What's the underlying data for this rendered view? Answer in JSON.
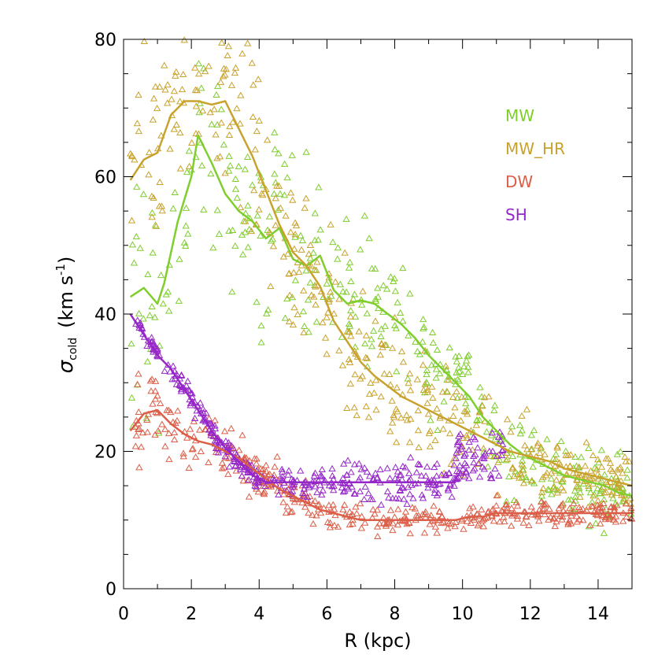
{
  "chart_data": {
    "type": "scatter",
    "xlabel": "R  (kpc)",
    "ylabel_symbol": "σ",
    "ylabel_subscript": "cold",
    "ylabel_unit": "(km s",
    "ylabel_unit_exp": "-1",
    "ylabel_unit_close": ")",
    "xlim": [
      0,
      15
    ],
    "ylim": [
      0,
      80
    ],
    "xticks": [
      0,
      2,
      4,
      6,
      8,
      10,
      12,
      14
    ],
    "yticks": [
      0,
      20,
      40,
      60,
      80
    ],
    "marker": "open-triangle",
    "legend_placement": "upper-right",
    "series": [
      {
        "name": "MW",
        "color": "#7fce2e",
        "mean_x": [
          0.2,
          0.6,
          1.0,
          1.2,
          1.6,
          2.0,
          2.2,
          2.6,
          3.0,
          3.4,
          3.8,
          4.2,
          4.6,
          5.0,
          5.4,
          5.8,
          6.2,
          6.6,
          7.0,
          7.4,
          7.8,
          8.2,
          8.6,
          9.0,
          9.4,
          9.8,
          10.2,
          10.6,
          11.0,
          11.4,
          11.8,
          12.2,
          12.6,
          13.0,
          13.4,
          13.8,
          14.2,
          14.6,
          15.0
        ],
        "mean_y": [
          42.5,
          43.8,
          41.5,
          44.5,
          53.5,
          60.0,
          66.0,
          62.0,
          57.5,
          55.0,
          53.5,
          51.0,
          52.5,
          48.0,
          47.0,
          48.5,
          43.5,
          41.5,
          42.0,
          41.5,
          40.0,
          38.5,
          36.5,
          34.0,
          32.0,
          30.0,
          28.0,
          25.0,
          23.0,
          21.0,
          19.5,
          18.5,
          17.5,
          16.5,
          16.0,
          15.5,
          15.0,
          14.0,
          13.5
        ],
        "scatter": {
          "count": 380,
          "r_start": 0.2,
          "r_end": 15.0,
          "spread": [
            9.0,
            7.0,
            5.0,
            3.5,
            2.5
          ]
        }
      },
      {
        "name": "MW_HR",
        "color": "#c8a22c",
        "mean_x": [
          0.2,
          0.6,
          1.0,
          1.4,
          1.8,
          2.2,
          2.6,
          3.0,
          3.4,
          3.8,
          4.2,
          4.6,
          5.0,
          5.4,
          5.8,
          6.2,
          6.6,
          7.0,
          7.4,
          7.8,
          8.2,
          8.6,
          9.0,
          9.4,
          9.8,
          10.2,
          10.6,
          11.0,
          11.4,
          11.8,
          12.2,
          12.6,
          13.0,
          13.4,
          13.8,
          14.2,
          14.6,
          15.0
        ],
        "mean_y": [
          59.5,
          62.5,
          63.5,
          69.0,
          71.0,
          71.0,
          70.5,
          71.0,
          67.0,
          63.0,
          58.0,
          53.0,
          49.0,
          47.0,
          44.0,
          39.0,
          36.0,
          33.0,
          31.0,
          29.5,
          28.0,
          27.0,
          26.0,
          25.0,
          24.0,
          23.0,
          22.0,
          21.0,
          20.0,
          19.5,
          19.0,
          18.5,
          17.5,
          17.0,
          16.5,
          16.0,
          15.5,
          15.0
        ],
        "scatter": {
          "count": 420,
          "r_start": 0.2,
          "r_end": 15.0,
          "spread": [
            7.0,
            6.0,
            4.5,
            3.0,
            2.0
          ]
        }
      },
      {
        "name": "DW",
        "color": "#db5e48",
        "mean_x": [
          0.2,
          0.6,
          1.0,
          1.4,
          1.8,
          2.2,
          2.6,
          3.0,
          3.4,
          3.8,
          4.2,
          4.6,
          5.0,
          5.4,
          5.8,
          6.2,
          6.6,
          7.0,
          7.4,
          7.8,
          8.2,
          8.6,
          9.0,
          9.4,
          9.8,
          10.2,
          10.6,
          11.0,
          11.4,
          11.8,
          12.2,
          12.6,
          13.0,
          13.4,
          13.8,
          14.2,
          14.6,
          15.0
        ],
        "mean_y": [
          23.0,
          25.5,
          26.0,
          24.0,
          22.5,
          21.5,
          21.0,
          20.0,
          19.0,
          17.5,
          16.0,
          14.5,
          13.5,
          12.5,
          11.5,
          11.0,
          10.5,
          10.0,
          10.0,
          10.0,
          10.0,
          10.0,
          10.0,
          10.0,
          10.0,
          10.5,
          10.5,
          11.0,
          11.0,
          11.0,
          11.0,
          11.0,
          11.0,
          11.0,
          11.0,
          11.0,
          11.0,
          11.0
        ],
        "scatter": {
          "count": 420,
          "r_start": 0.3,
          "r_end": 15.0,
          "spread": [
            3.0,
            1.6,
            1.0,
            0.9,
            0.9
          ]
        }
      },
      {
        "name": "SH",
        "color": "#9527c8",
        "mean_x": [
          0.2,
          0.6,
          1.0,
          1.4,
          1.8,
          2.2,
          2.6,
          3.0,
          3.4,
          3.8,
          4.2,
          4.6,
          5.0,
          5.4,
          5.8,
          6.2,
          6.6,
          7.0,
          7.4,
          7.8,
          8.2,
          8.6,
          9.0,
          9.4,
          9.8
        ],
        "mean_y": [
          40.0,
          37.0,
          34.0,
          32.0,
          29.0,
          26.0,
          23.0,
          20.5,
          18.5,
          16.5,
          15.5,
          15.5,
          15.5,
          15.5,
          15.5,
          15.5,
          15.5,
          15.5,
          15.5,
          15.5,
          15.5,
          15.5,
          15.5,
          15.5,
          15.5
        ],
        "scatter": {
          "count": 340,
          "r_start": 0.3,
          "r_end": 9.9,
          "spread": [
            0.6,
            0.8,
            1.1,
            1.4,
            1.5
          ]
        },
        "extra_scatter": {
          "count": 60,
          "r_start": 9.8,
          "r_end": 11.2,
          "y_min": 16.0,
          "y_max": 23.0
        }
      }
    ]
  }
}
